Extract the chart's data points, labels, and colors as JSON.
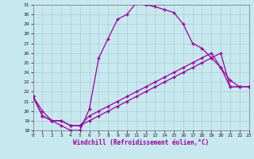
{
  "xlabel": "Windchill (Refroidissement éolien,°C)",
  "bg_color": "#c8e8f0",
  "line_color": "#990099",
  "grid_color": "#b8dce0",
  "xlim": [
    0,
    23
  ],
  "ylim": [
    18,
    31
  ],
  "xticks": [
    0,
    1,
    2,
    3,
    4,
    5,
    6,
    7,
    8,
    9,
    10,
    11,
    12,
    13,
    14,
    15,
    16,
    17,
    18,
    19,
    20,
    21,
    22,
    23
  ],
  "yticks": [
    18,
    19,
    20,
    21,
    22,
    23,
    24,
    25,
    26,
    27,
    28,
    29,
    30,
    31
  ],
  "curve1_y": [
    21.5,
    20.0,
    19.0,
    18.5,
    18.0,
    18.0,
    20.2,
    25.5,
    27.5,
    29.5,
    30.0,
    31.2,
    31.0,
    30.8,
    30.5,
    30.2,
    29.0,
    27.0,
    26.5,
    25.5,
    24.5,
    23.2,
    22.5,
    22.5
  ],
  "curve2_y": [
    21.5,
    19.5,
    19.0,
    19.0,
    18.5,
    18.5,
    19.5,
    20.0,
    20.5,
    21.0,
    21.5,
    22.0,
    22.5,
    23.0,
    23.5,
    24.0,
    24.5,
    25.0,
    25.5,
    26.0,
    24.5,
    22.5,
    22.5,
    22.5
  ],
  "curve3_y": [
    21.5,
    19.5,
    19.0,
    19.0,
    18.5,
    18.5,
    19.0,
    19.5,
    20.0,
    20.5,
    21.0,
    21.5,
    22.0,
    22.5,
    23.0,
    23.5,
    24.0,
    24.5,
    25.0,
    25.5,
    26.0,
    22.5,
    22.5,
    22.5
  ]
}
